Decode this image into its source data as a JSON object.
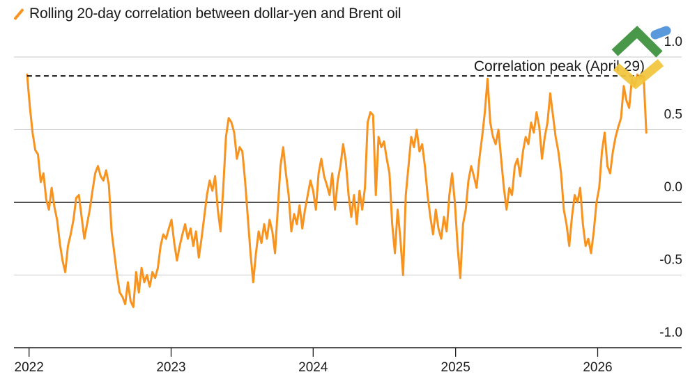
{
  "legend": {
    "label": "Rolling 20-day correlation between dollar-yen and Brent oil",
    "color": "#f7931e"
  },
  "annotation": {
    "text": "Correlation peak (April 29)",
    "value": 0.87
  },
  "chart_data": {
    "type": "line",
    "title": "",
    "xlabel": "",
    "ylabel": "",
    "ylim": [
      -1.0,
      1.0
    ],
    "xlim": [
      "2021-12-20",
      "2026-06-30"
    ],
    "yticks": [
      -1.0,
      -0.5,
      0.0,
      0.5,
      1.0
    ],
    "ytick_labels": [
      "-1.0",
      "-0.5",
      "0.0",
      "0.5",
      "1.0"
    ],
    "xticks": [
      "2022-01-01",
      "2023-01-01",
      "2024-01-01",
      "2025-01-01",
      "2026-01-01"
    ],
    "xtick_labels": [
      "2022",
      "2023",
      "2024",
      "2025",
      "2026"
    ],
    "grid": true,
    "legend_position": "top-left",
    "series": [
      {
        "name": "Rolling 20-day correlation between dollar-yen and Brent oil",
        "color": "#f7931e",
        "points": [
          [
            "2021-12-27",
            0.88
          ],
          [
            "2022-01-03",
            0.66
          ],
          [
            "2022-01-10",
            0.48
          ],
          [
            "2022-01-17",
            0.36
          ],
          [
            "2022-01-24",
            0.33
          ],
          [
            "2022-01-31",
            0.14
          ],
          [
            "2022-02-07",
            0.2
          ],
          [
            "2022-02-14",
            0.02
          ],
          [
            "2022-02-21",
            -0.05
          ],
          [
            "2022-02-28",
            0.1
          ],
          [
            "2022-03-07",
            -0.03
          ],
          [
            "2022-03-14",
            -0.12
          ],
          [
            "2022-03-21",
            -0.28
          ],
          [
            "2022-03-28",
            -0.4
          ],
          [
            "2022-04-04",
            -0.48
          ],
          [
            "2022-04-11",
            -0.3
          ],
          [
            "2022-04-18",
            -0.22
          ],
          [
            "2022-04-25",
            -0.12
          ],
          [
            "2022-05-02",
            0.03
          ],
          [
            "2022-05-09",
            0.05
          ],
          [
            "2022-05-16",
            -0.1
          ],
          [
            "2022-05-23",
            -0.25
          ],
          [
            "2022-05-30",
            -0.15
          ],
          [
            "2022-06-06",
            -0.05
          ],
          [
            "2022-06-13",
            0.08
          ],
          [
            "2022-06-20",
            0.2
          ],
          [
            "2022-06-27",
            0.25
          ],
          [
            "2022-07-04",
            0.18
          ],
          [
            "2022-07-11",
            0.15
          ],
          [
            "2022-07-18",
            0.22
          ],
          [
            "2022-07-25",
            0.12
          ],
          [
            "2022-08-01",
            -0.2
          ],
          [
            "2022-08-08",
            -0.35
          ],
          [
            "2022-08-15",
            -0.5
          ],
          [
            "2022-08-22",
            -0.62
          ],
          [
            "2022-08-29",
            -0.65
          ],
          [
            "2022-09-05",
            -0.7
          ],
          [
            "2022-09-12",
            -0.55
          ],
          [
            "2022-09-19",
            -0.68
          ],
          [
            "2022-09-26",
            -0.72
          ],
          [
            "2022-10-03",
            -0.48
          ],
          [
            "2022-10-10",
            -0.62
          ],
          [
            "2022-10-17",
            -0.45
          ],
          [
            "2022-10-24",
            -0.55
          ],
          [
            "2022-10-31",
            -0.5
          ],
          [
            "2022-11-07",
            -0.58
          ],
          [
            "2022-11-14",
            -0.48
          ],
          [
            "2022-11-21",
            -0.52
          ],
          [
            "2022-11-28",
            -0.45
          ],
          [
            "2022-12-05",
            -0.3
          ],
          [
            "2022-12-12",
            -0.22
          ],
          [
            "2022-12-19",
            -0.25
          ],
          [
            "2022-12-26",
            -0.18
          ],
          [
            "2023-01-02",
            -0.12
          ],
          [
            "2023-01-09",
            -0.28
          ],
          [
            "2023-01-16",
            -0.4
          ],
          [
            "2023-01-23",
            -0.3
          ],
          [
            "2023-01-30",
            -0.22
          ],
          [
            "2023-02-06",
            -0.15
          ],
          [
            "2023-02-13",
            -0.25
          ],
          [
            "2023-02-20",
            -0.18
          ],
          [
            "2023-02-27",
            -0.3
          ],
          [
            "2023-03-06",
            -0.2
          ],
          [
            "2023-03-13",
            -0.38
          ],
          [
            "2023-03-20",
            -0.25
          ],
          [
            "2023-03-27",
            -0.1
          ],
          [
            "2023-04-03",
            0.05
          ],
          [
            "2023-04-10",
            0.15
          ],
          [
            "2023-04-17",
            0.08
          ],
          [
            "2023-04-24",
            0.18
          ],
          [
            "2023-05-01",
            -0.05
          ],
          [
            "2023-05-08",
            -0.2
          ],
          [
            "2023-05-15",
            0.1
          ],
          [
            "2023-05-22",
            0.45
          ],
          [
            "2023-05-29",
            0.58
          ],
          [
            "2023-06-05",
            0.55
          ],
          [
            "2023-06-12",
            0.48
          ],
          [
            "2023-06-19",
            0.3
          ],
          [
            "2023-06-26",
            0.38
          ],
          [
            "2023-07-03",
            0.35
          ],
          [
            "2023-07-10",
            0.15
          ],
          [
            "2023-07-17",
            -0.1
          ],
          [
            "2023-07-24",
            -0.35
          ],
          [
            "2023-07-31",
            -0.55
          ],
          [
            "2023-08-07",
            -0.35
          ],
          [
            "2023-08-14",
            -0.2
          ],
          [
            "2023-08-21",
            -0.28
          ],
          [
            "2023-08-28",
            -0.15
          ],
          [
            "2023-09-04",
            -0.25
          ],
          [
            "2023-09-11",
            -0.12
          ],
          [
            "2023-09-18",
            -0.2
          ],
          [
            "2023-09-25",
            -0.35
          ],
          [
            "2023-10-02",
            -0.05
          ],
          [
            "2023-10-09",
            0.25
          ],
          [
            "2023-10-16",
            0.38
          ],
          [
            "2023-10-23",
            0.2
          ],
          [
            "2023-10-30",
            0.05
          ],
          [
            "2023-11-06",
            -0.2
          ],
          [
            "2023-11-13",
            -0.08
          ],
          [
            "2023-11-20",
            -0.15
          ],
          [
            "2023-11-27",
            -0.02
          ],
          [
            "2023-12-04",
            -0.18
          ],
          [
            "2023-12-11",
            -0.05
          ],
          [
            "2023-12-18",
            0.05
          ],
          [
            "2023-12-25",
            0.15
          ],
          [
            "2024-01-01",
            0.08
          ],
          [
            "2024-01-08",
            -0.05
          ],
          [
            "2024-01-15",
            0.2
          ],
          [
            "2024-01-22",
            0.3
          ],
          [
            "2024-01-29",
            0.18
          ],
          [
            "2024-02-05",
            0.12
          ],
          [
            "2024-02-12",
            0.05
          ],
          [
            "2024-02-19",
            0.2
          ],
          [
            "2024-02-26",
            -0.05
          ],
          [
            "2024-03-04",
            0.15
          ],
          [
            "2024-03-11",
            0.25
          ],
          [
            "2024-03-18",
            0.4
          ],
          [
            "2024-03-25",
            0.28
          ],
          [
            "2024-04-01",
            0.05
          ],
          [
            "2024-04-08",
            -0.1
          ],
          [
            "2024-04-15",
            0.05
          ],
          [
            "2024-04-22",
            -0.15
          ],
          [
            "2024-04-29",
            0.08
          ],
          [
            "2024-05-06",
            -0.05
          ],
          [
            "2024-05-13",
            0.1
          ],
          [
            "2024-05-20",
            0.55
          ],
          [
            "2024-05-27",
            0.62
          ],
          [
            "2024-06-03",
            0.6
          ],
          [
            "2024-06-10",
            0.05
          ],
          [
            "2024-06-17",
            0.45
          ],
          [
            "2024-06-24",
            0.38
          ],
          [
            "2024-07-01",
            0.42
          ],
          [
            "2024-07-08",
            0.3
          ],
          [
            "2024-07-15",
            0.2
          ],
          [
            "2024-07-22",
            -0.15
          ],
          [
            "2024-07-29",
            -0.35
          ],
          [
            "2024-08-05",
            -0.05
          ],
          [
            "2024-08-12",
            -0.25
          ],
          [
            "2024-08-19",
            -0.5
          ],
          [
            "2024-08-26",
            0.05
          ],
          [
            "2024-09-02",
            0.25
          ],
          [
            "2024-09-09",
            0.45
          ],
          [
            "2024-09-16",
            0.38
          ],
          [
            "2024-09-23",
            0.5
          ],
          [
            "2024-09-30",
            0.35
          ],
          [
            "2024-10-07",
            0.4
          ],
          [
            "2024-10-14",
            0.25
          ],
          [
            "2024-10-21",
            0.05
          ],
          [
            "2024-10-28",
            -0.1
          ],
          [
            "2024-11-04",
            -0.22
          ],
          [
            "2024-11-11",
            -0.05
          ],
          [
            "2024-11-18",
            -0.18
          ],
          [
            "2024-11-25",
            -0.25
          ],
          [
            "2024-12-02",
            -0.1
          ],
          [
            "2024-12-09",
            -0.2
          ],
          [
            "2024-12-16",
            0.05
          ],
          [
            "2024-12-23",
            0.2
          ],
          [
            "2024-12-30",
            0.0
          ],
          [
            "2025-01-06",
            -0.3
          ],
          [
            "2025-01-13",
            -0.52
          ],
          [
            "2025-01-20",
            -0.15
          ],
          [
            "2025-01-27",
            -0.05
          ],
          [
            "2025-02-03",
            0.15
          ],
          [
            "2025-02-10",
            0.25
          ],
          [
            "2025-02-17",
            0.18
          ],
          [
            "2025-02-24",
            0.1
          ],
          [
            "2025-03-03",
            0.3
          ],
          [
            "2025-03-10",
            0.45
          ],
          [
            "2025-03-17",
            0.62
          ],
          [
            "2025-03-24",
            0.85
          ],
          [
            "2025-03-31",
            0.55
          ],
          [
            "2025-04-07",
            0.45
          ],
          [
            "2025-04-14",
            0.4
          ],
          [
            "2025-04-21",
            0.5
          ],
          [
            "2025-04-28",
            0.3
          ],
          [
            "2025-05-05",
            0.1
          ],
          [
            "2025-05-12",
            -0.05
          ],
          [
            "2025-05-19",
            0.1
          ],
          [
            "2025-05-26",
            0.05
          ],
          [
            "2025-06-02",
            0.25
          ],
          [
            "2025-06-09",
            0.3
          ],
          [
            "2025-06-16",
            0.18
          ],
          [
            "2025-06-23",
            0.35
          ],
          [
            "2025-06-30",
            0.45
          ],
          [
            "2025-07-07",
            0.4
          ],
          [
            "2025-07-14",
            0.55
          ],
          [
            "2025-07-21",
            0.48
          ],
          [
            "2025-07-28",
            0.62
          ],
          [
            "2025-08-04",
            0.52
          ],
          [
            "2025-08-11",
            0.3
          ],
          [
            "2025-08-18",
            0.45
          ],
          [
            "2025-08-25",
            0.55
          ],
          [
            "2025-09-01",
            0.75
          ],
          [
            "2025-09-08",
            0.6
          ],
          [
            "2025-09-15",
            0.45
          ],
          [
            "2025-09-22",
            0.35
          ],
          [
            "2025-09-29",
            0.2
          ],
          [
            "2025-10-06",
            -0.05
          ],
          [
            "2025-10-13",
            -0.15
          ],
          [
            "2025-10-20",
            -0.3
          ],
          [
            "2025-10-27",
            -0.1
          ],
          [
            "2025-11-03",
            0.05
          ],
          [
            "2025-11-10",
            0.0
          ],
          [
            "2025-11-17",
            0.1
          ],
          [
            "2025-11-24",
            -0.15
          ],
          [
            "2025-12-01",
            -0.3
          ],
          [
            "2025-12-08",
            -0.25
          ],
          [
            "2025-12-15",
            -0.35
          ],
          [
            "2025-12-22",
            -0.2
          ],
          [
            "2025-12-29",
            0.0
          ],
          [
            "2026-01-05",
            0.1
          ],
          [
            "2026-01-12",
            0.35
          ],
          [
            "2026-01-19",
            0.48
          ],
          [
            "2026-01-26",
            0.25
          ],
          [
            "2026-02-02",
            0.2
          ],
          [
            "2026-02-09",
            0.35
          ],
          [
            "2026-02-16",
            0.45
          ],
          [
            "2026-02-23",
            0.52
          ],
          [
            "2026-03-02",
            0.58
          ],
          [
            "2026-03-09",
            0.8
          ],
          [
            "2026-03-16",
            0.7
          ],
          [
            "2026-03-23",
            0.65
          ],
          [
            "2026-03-30",
            0.85
          ],
          [
            "2026-04-06",
            0.8
          ],
          [
            "2026-04-13",
            0.88
          ],
          [
            "2026-04-20",
            0.85
          ],
          [
            "2026-04-29",
            0.87
          ],
          [
            "2026-05-06",
            0.48
          ]
        ]
      }
    ]
  }
}
